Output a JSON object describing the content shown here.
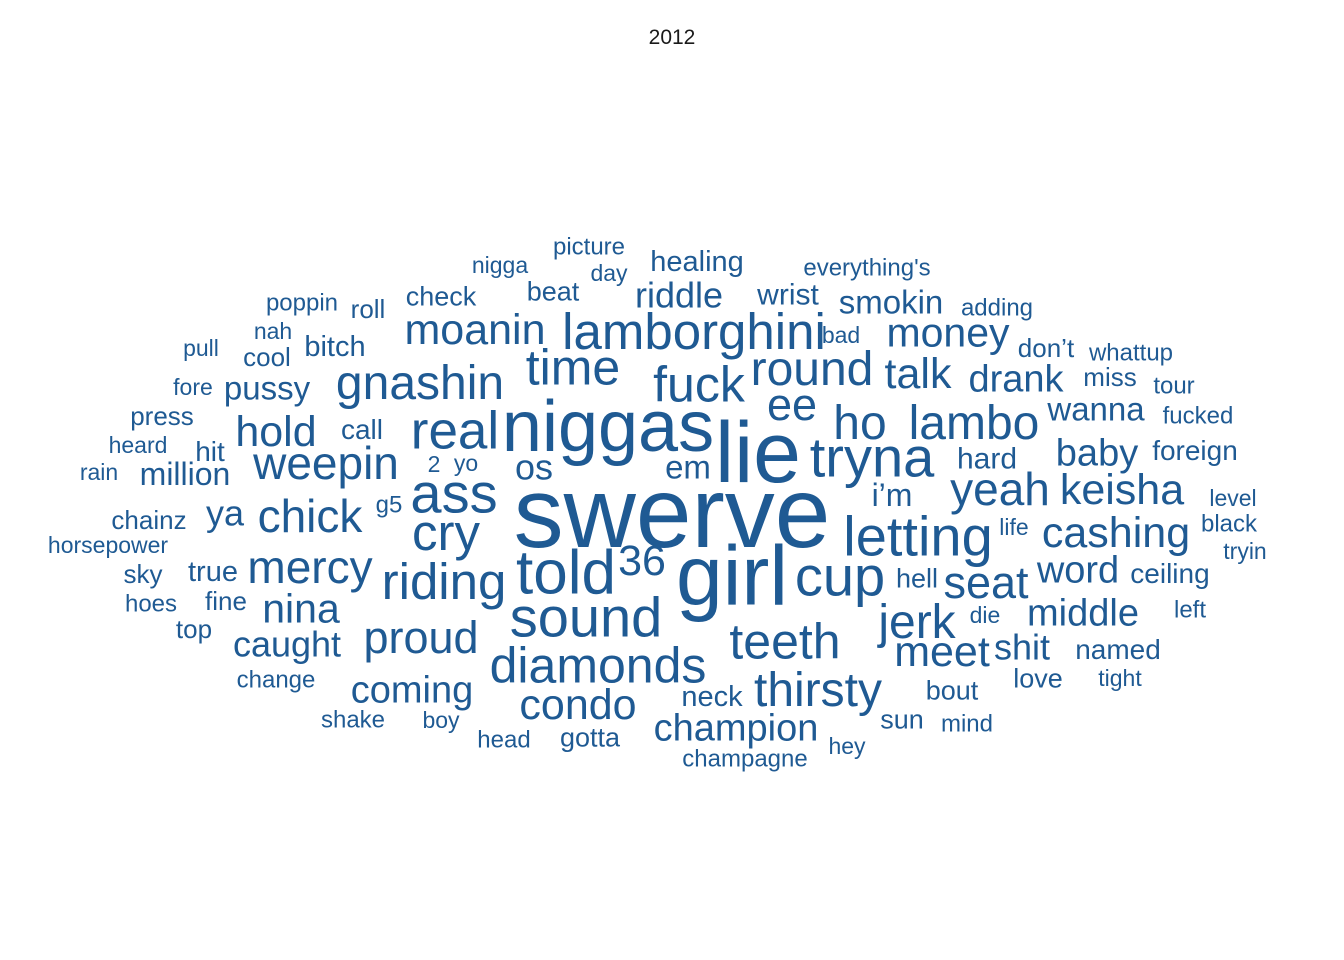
{
  "chart_data": {
    "type": "wordcloud",
    "title": "2012",
    "color": "#1f5a93",
    "words": [
      {
        "text": "swerve",
        "weight": 100
      },
      {
        "text": "lie",
        "weight": 86
      },
      {
        "text": "girl",
        "weight": 84
      },
      {
        "text": "niggas",
        "weight": 72
      },
      {
        "text": "told",
        "weight": 62
      },
      {
        "text": "ass",
        "weight": 56
      },
      {
        "text": "tryna",
        "weight": 56
      },
      {
        "text": "letting",
        "weight": 56
      },
      {
        "text": "sound",
        "weight": 56
      },
      {
        "text": "cup",
        "weight": 56
      },
      {
        "text": "real",
        "weight": 53
      },
      {
        "text": "cry",
        "weight": 51
      },
      {
        "text": "riding",
        "weight": 51
      },
      {
        "text": "lamborghini",
        "weight": 51
      },
      {
        "text": "diamonds",
        "weight": 50
      },
      {
        "text": "teeth",
        "weight": 50
      },
      {
        "text": "time",
        "weight": 50
      },
      {
        "text": "fuck",
        "weight": 50
      },
      {
        "text": "round",
        "weight": 48
      },
      {
        "text": "gnashin",
        "weight": 48
      },
      {
        "text": "ho",
        "weight": 48
      },
      {
        "text": "lambo",
        "weight": 48
      },
      {
        "text": "thirsty",
        "weight": 48
      },
      {
        "text": "jerk",
        "weight": 48
      },
      {
        "text": "weepin",
        "weight": 46
      },
      {
        "text": "chick",
        "weight": 46
      },
      {
        "text": "mercy",
        "weight": 46
      },
      {
        "text": "yeah",
        "weight": 46
      },
      {
        "text": "seat",
        "weight": 45
      },
      {
        "text": "proud",
        "weight": 45
      },
      {
        "text": "ee",
        "weight": 45
      },
      {
        "text": "moanin",
        "weight": 43
      },
      {
        "text": "talk",
        "weight": 43
      },
      {
        "text": "36",
        "weight": 43
      },
      {
        "text": "condo",
        "weight": 43
      },
      {
        "text": "keisha",
        "weight": 43
      },
      {
        "text": "cashing",
        "weight": 43
      },
      {
        "text": "meet",
        "weight": 43
      },
      {
        "text": "hold",
        "weight": 43
      },
      {
        "text": "money",
        "weight": 41
      },
      {
        "text": "nina",
        "weight": 41
      },
      {
        "text": "champion",
        "weight": 38
      },
      {
        "text": "baby",
        "weight": 38
      },
      {
        "text": "coming",
        "weight": 38
      },
      {
        "text": "drank",
        "weight": 38
      },
      {
        "text": "middle",
        "weight": 38
      },
      {
        "text": "word",
        "weight": 38
      },
      {
        "text": "os",
        "weight": 36
      },
      {
        "text": "caught",
        "weight": 36
      },
      {
        "text": "shit",
        "weight": 36
      },
      {
        "text": "riddle",
        "weight": 36
      },
      {
        "text": "ya",
        "weight": 36
      },
      {
        "text": "wanna",
        "weight": 33
      },
      {
        "text": "smokin",
        "weight": 33
      },
      {
        "text": "pussy",
        "weight": 33
      },
      {
        "text": "em",
        "weight": 33
      },
      {
        "text": "i’m",
        "weight": 32
      },
      {
        "text": "million",
        "weight": 32
      },
      {
        "text": "hard",
        "weight": 30
      },
      {
        "text": "wrist",
        "weight": 30
      },
      {
        "text": "healing",
        "weight": 29
      },
      {
        "text": "bitch",
        "weight": 29
      },
      {
        "text": "true",
        "weight": 29
      },
      {
        "text": "neck",
        "weight": 29
      },
      {
        "text": "foreign",
        "weight": 28
      },
      {
        "text": "ceiling",
        "weight": 28
      },
      {
        "text": "named",
        "weight": 28
      },
      {
        "text": "hit",
        "weight": 28
      },
      {
        "text": "call",
        "weight": 28
      },
      {
        "text": "check",
        "weight": 27
      },
      {
        "text": "beat",
        "weight": 27
      },
      {
        "text": "hell",
        "weight": 27
      },
      {
        "text": "bout",
        "weight": 27
      },
      {
        "text": "love",
        "weight": 27
      },
      {
        "text": "gotta",
        "weight": 27
      },
      {
        "text": "sun",
        "weight": 27
      },
      {
        "text": "miss",
        "weight": 26
      },
      {
        "text": "don’t",
        "weight": 26
      },
      {
        "text": "press",
        "weight": 26
      },
      {
        "text": "cool",
        "weight": 26
      },
      {
        "text": "roll",
        "weight": 26
      },
      {
        "text": "fine",
        "weight": 26
      },
      {
        "text": "chainz",
        "weight": 26
      },
      {
        "text": "sky",
        "weight": 26
      },
      {
        "text": "top",
        "weight": 26
      },
      {
        "text": "g5",
        "weight": 24
      },
      {
        "text": "picture",
        "weight": 24
      },
      {
        "text": "whattup",
        "weight": 24
      },
      {
        "text": "fucked",
        "weight": 24
      },
      {
        "text": "black",
        "weight": 24
      },
      {
        "text": "hoes",
        "weight": 24
      },
      {
        "text": "everything's",
        "weight": 24
      },
      {
        "text": "champagne",
        "weight": 24
      },
      {
        "text": "mind",
        "weight": 24
      },
      {
        "text": "poppin",
        "weight": 24
      },
      {
        "text": "adding",
        "weight": 24
      },
      {
        "text": "tour",
        "weight": 24
      },
      {
        "text": "left",
        "weight": 24
      },
      {
        "text": "change",
        "weight": 24
      },
      {
        "text": "shake",
        "weight": 24
      },
      {
        "text": "head",
        "weight": 24
      },
      {
        "text": "horsepower",
        "weight": 23
      },
      {
        "text": "nigga",
        "weight": 23
      },
      {
        "text": "level",
        "weight": 23
      },
      {
        "text": "tryin",
        "weight": 23
      },
      {
        "text": "tight",
        "weight": 23
      },
      {
        "text": "heard",
        "weight": 23
      },
      {
        "text": "pull",
        "weight": 23
      },
      {
        "text": "rain",
        "weight": 23
      },
      {
        "text": "day",
        "weight": 23
      },
      {
        "text": "bad",
        "weight": 23
      },
      {
        "text": "fore",
        "weight": 23
      },
      {
        "text": "yo",
        "weight": 23
      },
      {
        "text": "2",
        "weight": 23
      },
      {
        "text": "life",
        "weight": 23
      },
      {
        "text": "die",
        "weight": 23
      },
      {
        "text": "boy",
        "weight": 23
      },
      {
        "text": "hey",
        "weight": 23
      },
      {
        "text": "nah",
        "weight": 23
      }
    ]
  }
}
